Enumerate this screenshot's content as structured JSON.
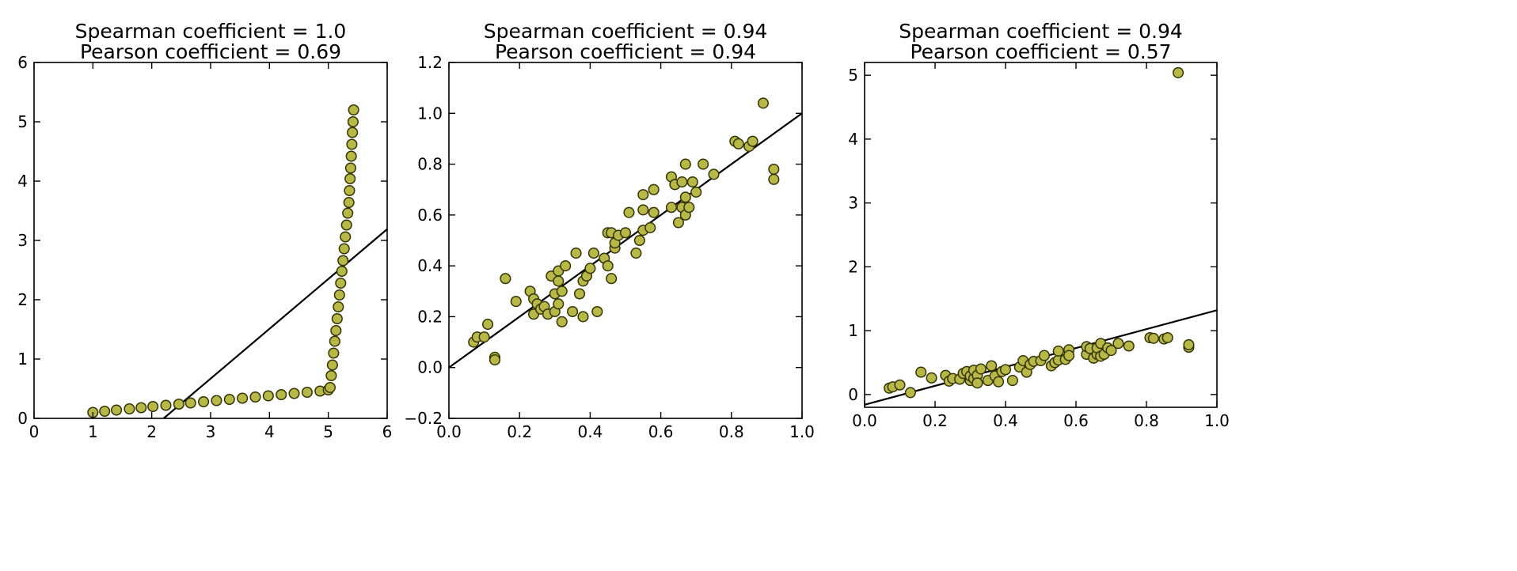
{
  "chart_data": [
    {
      "type": "scatter",
      "title": "Spearman coefficient = 1.0",
      "subtitle": "Pearson coefficient = 0.69",
      "xlabel": "",
      "ylabel": "",
      "xlim": [
        0,
        6
      ],
      "ylim": [
        0,
        6
      ],
      "xticks": [
        0,
        1,
        2,
        3,
        4,
        5,
        6
      ],
      "yticks": [
        0,
        1,
        2,
        3,
        4,
        5,
        6
      ],
      "xtick_labels": [
        "0",
        "1",
        "2",
        "3",
        "4",
        "5",
        "6"
      ],
      "ytick_labels": [
        "0",
        "1",
        "2",
        "3",
        "4",
        "5",
        "6"
      ],
      "grid": false,
      "marker_color": "#b8b849",
      "points": [
        [
          1.0,
          0.1
        ],
        [
          1.2,
          0.12
        ],
        [
          1.4,
          0.14
        ],
        [
          1.62,
          0.16
        ],
        [
          1.82,
          0.18
        ],
        [
          2.02,
          0.2
        ],
        [
          2.24,
          0.22
        ],
        [
          2.46,
          0.24
        ],
        [
          2.66,
          0.26
        ],
        [
          2.88,
          0.28
        ],
        [
          3.1,
          0.3
        ],
        [
          3.32,
          0.32
        ],
        [
          3.54,
          0.34
        ],
        [
          3.76,
          0.36
        ],
        [
          3.98,
          0.38
        ],
        [
          4.2,
          0.4
        ],
        [
          4.42,
          0.42
        ],
        [
          4.64,
          0.44
        ],
        [
          4.86,
          0.46
        ],
        [
          5.0,
          0.48
        ],
        [
          5.03,
          0.52
        ],
        [
          5.05,
          0.72
        ],
        [
          5.07,
          0.9
        ],
        [
          5.09,
          1.1
        ],
        [
          5.11,
          1.3
        ],
        [
          5.13,
          1.48
        ],
        [
          5.15,
          1.68
        ],
        [
          5.17,
          1.88
        ],
        [
          5.19,
          2.08
        ],
        [
          5.21,
          2.28
        ],
        [
          5.23,
          2.48
        ],
        [
          5.25,
          2.66
        ],
        [
          5.27,
          2.86
        ],
        [
          5.29,
          3.06
        ],
        [
          5.31,
          3.26
        ],
        [
          5.33,
          3.46
        ],
        [
          5.35,
          3.64
        ],
        [
          5.36,
          3.84
        ],
        [
          5.37,
          4.04
        ],
        [
          5.38,
          4.22
        ],
        [
          5.39,
          4.42
        ],
        [
          5.4,
          4.62
        ],
        [
          5.41,
          4.82
        ],
        [
          5.42,
          5.0
        ],
        [
          5.43,
          5.2
        ]
      ],
      "fit_line": {
        "slope": 0.84,
        "intercept": -1.85
      }
    },
    {
      "type": "scatter",
      "title": "Spearman coefficient = 0.94",
      "subtitle": "Pearson coefficient = 0.94",
      "xlabel": "",
      "ylabel": "",
      "xlim": [
        0.0,
        1.0
      ],
      "ylim": [
        -0.2,
        1.2
      ],
      "xticks": [
        0.0,
        0.2,
        0.4,
        0.6,
        0.8,
        1.0
      ],
      "yticks": [
        -0.2,
        0.0,
        0.2,
        0.4,
        0.6,
        0.8,
        1.0,
        1.2
      ],
      "xtick_labels": [
        "0.0",
        "0.2",
        "0.4",
        "0.6",
        "0.8",
        "1.0"
      ],
      "ytick_labels": [
        "−0.2",
        "0.0",
        "0.2",
        "0.4",
        "0.6",
        "0.8",
        "1.0",
        "1.2"
      ],
      "grid": false,
      "marker_color": "#b8b849",
      "points": [
        [
          0.07,
          0.1
        ],
        [
          0.08,
          0.12
        ],
        [
          0.1,
          0.12
        ],
        [
          0.11,
          0.17
        ],
        [
          0.13,
          0.04
        ],
        [
          0.13,
          0.03
        ],
        [
          0.16,
          0.35
        ],
        [
          0.19,
          0.26
        ],
        [
          0.23,
          0.3
        ],
        [
          0.24,
          0.21
        ],
        [
          0.24,
          0.27
        ],
        [
          0.25,
          0.25
        ],
        [
          0.26,
          0.23
        ],
        [
          0.27,
          0.24
        ],
        [
          0.28,
          0.21
        ],
        [
          0.29,
          0.36
        ],
        [
          0.3,
          0.22
        ],
        [
          0.3,
          0.29
        ],
        [
          0.31,
          0.34
        ],
        [
          0.31,
          0.25
        ],
        [
          0.31,
          0.38
        ],
        [
          0.32,
          0.3
        ],
        [
          0.32,
          0.18
        ],
        [
          0.33,
          0.4
        ],
        [
          0.35,
          0.22
        ],
        [
          0.36,
          0.45
        ],
        [
          0.37,
          0.29
        ],
        [
          0.38,
          0.2
        ],
        [
          0.38,
          0.34
        ],
        [
          0.39,
          0.36
        ],
        [
          0.4,
          0.39
        ],
        [
          0.41,
          0.45
        ],
        [
          0.42,
          0.22
        ],
        [
          0.44,
          0.43
        ],
        [
          0.45,
          0.53
        ],
        [
          0.45,
          0.4
        ],
        [
          0.46,
          0.35
        ],
        [
          0.46,
          0.53
        ],
        [
          0.47,
          0.47
        ],
        [
          0.47,
          0.49
        ],
        [
          0.48,
          0.52
        ],
        [
          0.5,
          0.53
        ],
        [
          0.51,
          0.61
        ],
        [
          0.53,
          0.45
        ],
        [
          0.54,
          0.5
        ],
        [
          0.55,
          0.54
        ],
        [
          0.55,
          0.62
        ],
        [
          0.55,
          0.68
        ],
        [
          0.57,
          0.55
        ],
        [
          0.58,
          0.7
        ],
        [
          0.58,
          0.61
        ],
        [
          0.63,
          0.63
        ],
        [
          0.63,
          0.75
        ],
        [
          0.64,
          0.72
        ],
        [
          0.64,
          0.72
        ],
        [
          0.65,
          0.57
        ],
        [
          0.66,
          0.63
        ],
        [
          0.66,
          0.73
        ],
        [
          0.67,
          0.6
        ],
        [
          0.67,
          0.67
        ],
        [
          0.67,
          0.8
        ],
        [
          0.68,
          0.63
        ],
        [
          0.69,
          0.73
        ],
        [
          0.7,
          0.69
        ],
        [
          0.72,
          0.8
        ],
        [
          0.75,
          0.76
        ],
        [
          0.81,
          0.89
        ],
        [
          0.82,
          0.88
        ],
        [
          0.85,
          0.87
        ],
        [
          0.86,
          0.89
        ],
        [
          0.89,
          1.04
        ],
        [
          0.92,
          0.74
        ],
        [
          0.92,
          0.78
        ]
      ],
      "fit_line": {
        "slope": 1.0,
        "intercept": 0.0
      }
    },
    {
      "type": "scatter",
      "title": "Spearman coefficient = 0.94",
      "subtitle": "Pearson coefficient = 0.57",
      "xlabel": "",
      "ylabel": "",
      "xlim": [
        0.0,
        1.0
      ],
      "ylim": [
        -0.2,
        5.2
      ],
      "xticks": [
        0.0,
        0.2,
        0.4,
        0.6,
        0.8,
        1.0
      ],
      "yticks": [
        0,
        1,
        2,
        3,
        4,
        5
      ],
      "xtick_labels": [
        "0.0",
        "0.2",
        "0.4",
        "0.6",
        "0.8",
        "1.0"
      ],
      "ytick_labels": [
        "0",
        "1",
        "2",
        "3",
        "4",
        "5"
      ],
      "grid": false,
      "marker_color": "#b8b849",
      "points": [
        [
          0.07,
          0.1
        ],
        [
          0.08,
          0.12
        ],
        [
          0.1,
          0.15
        ],
        [
          0.13,
          0.03
        ],
        [
          0.16,
          0.35
        ],
        [
          0.19,
          0.26
        ],
        [
          0.23,
          0.3
        ],
        [
          0.24,
          0.21
        ],
        [
          0.25,
          0.25
        ],
        [
          0.27,
          0.24
        ],
        [
          0.28,
          0.33
        ],
        [
          0.29,
          0.36
        ],
        [
          0.3,
          0.22
        ],
        [
          0.3,
          0.29
        ],
        [
          0.31,
          0.25
        ],
        [
          0.31,
          0.38
        ],
        [
          0.32,
          0.3
        ],
        [
          0.32,
          0.18
        ],
        [
          0.33,
          0.4
        ],
        [
          0.35,
          0.22
        ],
        [
          0.36,
          0.45
        ],
        [
          0.37,
          0.29
        ],
        [
          0.38,
          0.2
        ],
        [
          0.39,
          0.36
        ],
        [
          0.4,
          0.39
        ],
        [
          0.42,
          0.22
        ],
        [
          0.44,
          0.43
        ],
        [
          0.45,
          0.53
        ],
        [
          0.46,
          0.35
        ],
        [
          0.47,
          0.47
        ],
        [
          0.48,
          0.52
        ],
        [
          0.5,
          0.53
        ],
        [
          0.51,
          0.61
        ],
        [
          0.53,
          0.45
        ],
        [
          0.54,
          0.5
        ],
        [
          0.55,
          0.54
        ],
        [
          0.55,
          0.68
        ],
        [
          0.57,
          0.55
        ],
        [
          0.58,
          0.7
        ],
        [
          0.58,
          0.61
        ],
        [
          0.63,
          0.63
        ],
        [
          0.63,
          0.75
        ],
        [
          0.64,
          0.72
        ],
        [
          0.65,
          0.57
        ],
        [
          0.66,
          0.63
        ],
        [
          0.66,
          0.73
        ],
        [
          0.67,
          0.6
        ],
        [
          0.67,
          0.8
        ],
        [
          0.68,
          0.63
        ],
        [
          0.69,
          0.73
        ],
        [
          0.7,
          0.69
        ],
        [
          0.72,
          0.8
        ],
        [
          0.75,
          0.76
        ],
        [
          0.81,
          0.89
        ],
        [
          0.82,
          0.88
        ],
        [
          0.85,
          0.87
        ],
        [
          0.86,
          0.89
        ],
        [
          0.92,
          0.74
        ],
        [
          0.92,
          0.78
        ],
        [
          0.89,
          5.04
        ]
      ],
      "fit_line": {
        "slope": 1.48,
        "intercept": -0.16
      }
    }
  ]
}
